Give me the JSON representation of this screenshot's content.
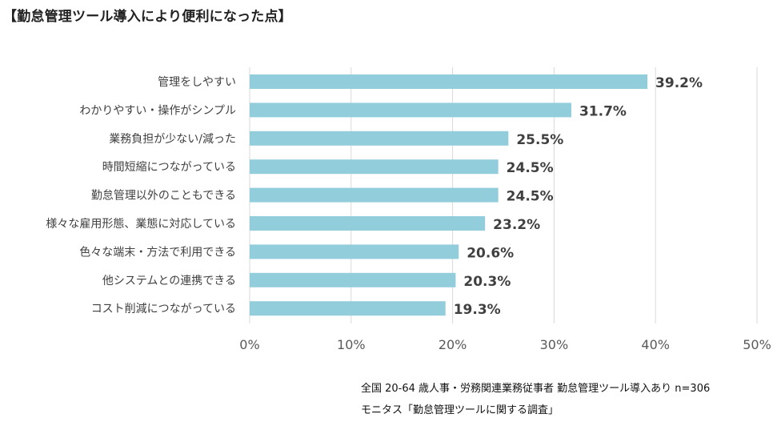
{
  "page": {
    "title": "【勤怠管理ツール導入により便利になった点】",
    "footnote_line1": "全国 20-64 歳人事・労務関連業務従事者 勤怠管理ツール導入あり n=306",
    "footnote_line2": "モニタス「勤怠管理ツールに関する調査」"
  },
  "chart_data": {
    "type": "bar",
    "orientation": "horizontal",
    "title": "【勤怠管理ツール導入により便利になった点】",
    "xlabel": "",
    "ylabel": "",
    "categories": [
      "管理をしやすい",
      "わかりやすい・操作がシンプル",
      "業務負担が少ない/減った",
      "時間短縮につながっている",
      "勤怠管理以外のこともできる",
      "様々な雇用形態、業態に対応している",
      "色々な端末・方法で利用できる",
      "他システムとの連携できる",
      "コスト削減につながっている"
    ],
    "values": [
      39.2,
      31.7,
      25.5,
      24.5,
      24.5,
      23.2,
      20.6,
      20.3,
      19.3
    ],
    "value_labels": [
      "39.2%",
      "31.7%",
      "25.5%",
      "24.5%",
      "24.5%",
      "23.2%",
      "20.6%",
      "20.3%",
      "19.3%"
    ],
    "xlim": [
      0,
      50
    ],
    "xticks": [
      0,
      10,
      20,
      30,
      40,
      50
    ],
    "xtick_labels": [
      "0%",
      "10%",
      "20%",
      "30%",
      "40%",
      "50%"
    ],
    "grid": "vertical",
    "legend": "none",
    "bar_color": "#92cddc",
    "grid_color": "#d9d9d9"
  }
}
